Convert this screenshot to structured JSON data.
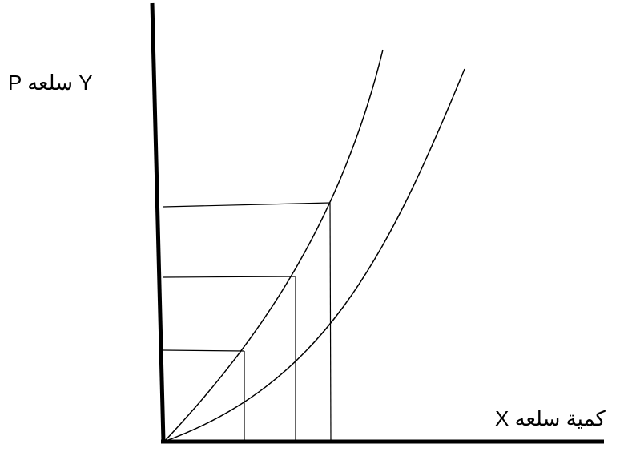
{
  "labels": {
    "y_axis": "P سلعه Y",
    "x_axis": "كمية سلعه X"
  },
  "colors": {
    "line": "#000000",
    "background": "#ffffff"
  }
}
